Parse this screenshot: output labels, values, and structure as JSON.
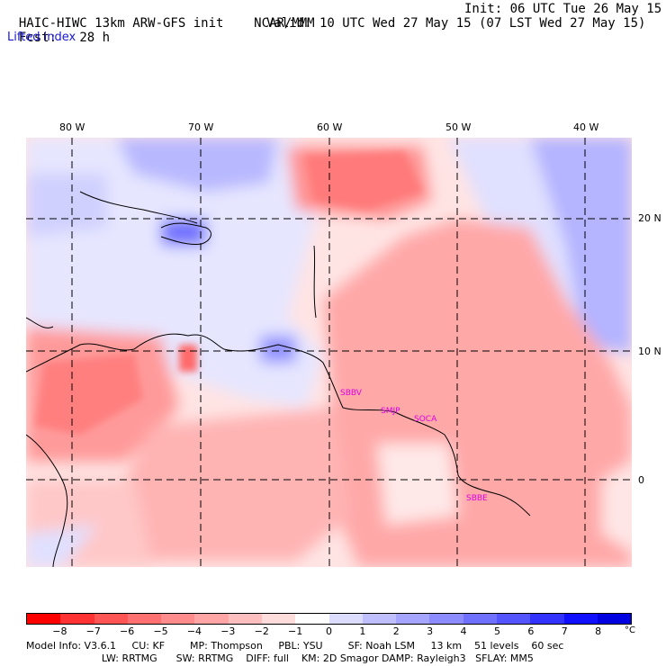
{
  "header": {
    "title": "HAIC-HIWC 13km ARW-GFS init",
    "org": "NCAR/MMM",
    "init": "Init: 06 UTC Tue 26 May 15",
    "fcst_label": "Fcst:",
    "fcst_value": "28 h",
    "valid": "Valid: 10 UTC Wed 27 May 15 (07 LST Wed 27 May 15)",
    "variable": "Lifted index"
  },
  "map": {
    "lon_labels": [
      "80 W",
      "70 W",
      "60 W",
      "50 W",
      "40 W"
    ],
    "lat_labels": [
      "20 N",
      "10 N",
      "0"
    ],
    "stations": [
      "SBBV",
      "SMJP",
      "SOCA",
      "SBBE"
    ]
  },
  "colorbar": {
    "colors": [
      "#ff0000",
      "#ff3333",
      "#ff5555",
      "#ff7070",
      "#ff8c8c",
      "#ffa5a5",
      "#ffbfbf",
      "#ffdcdc",
      "#ffffff",
      "#dcdcff",
      "#bfbfff",
      "#a5a5ff",
      "#8c8cff",
      "#7070ff",
      "#5555ff",
      "#3333ff",
      "#1010ff",
      "#0000e0"
    ],
    "labels": [
      "−8",
      "−7",
      "−6",
      "−5",
      "−4",
      "−3",
      "−2",
      "−1",
      "0",
      "1",
      "2",
      "3",
      "4",
      "5",
      "6",
      "7",
      "8"
    ],
    "unit": "°C"
  },
  "footer": {
    "line1": "Model Info: V3.6.1     CU: KF        MP: Thompson     PBL: YSU        SF: Noah LSM     13 km    51 levels    60 sec",
    "line2": "                        LW: RRTMG      SW: RRTMG    DIFF: full    KM: 2D Smagor DAMP: Rayleigh3   SFLAY: MM5"
  }
}
